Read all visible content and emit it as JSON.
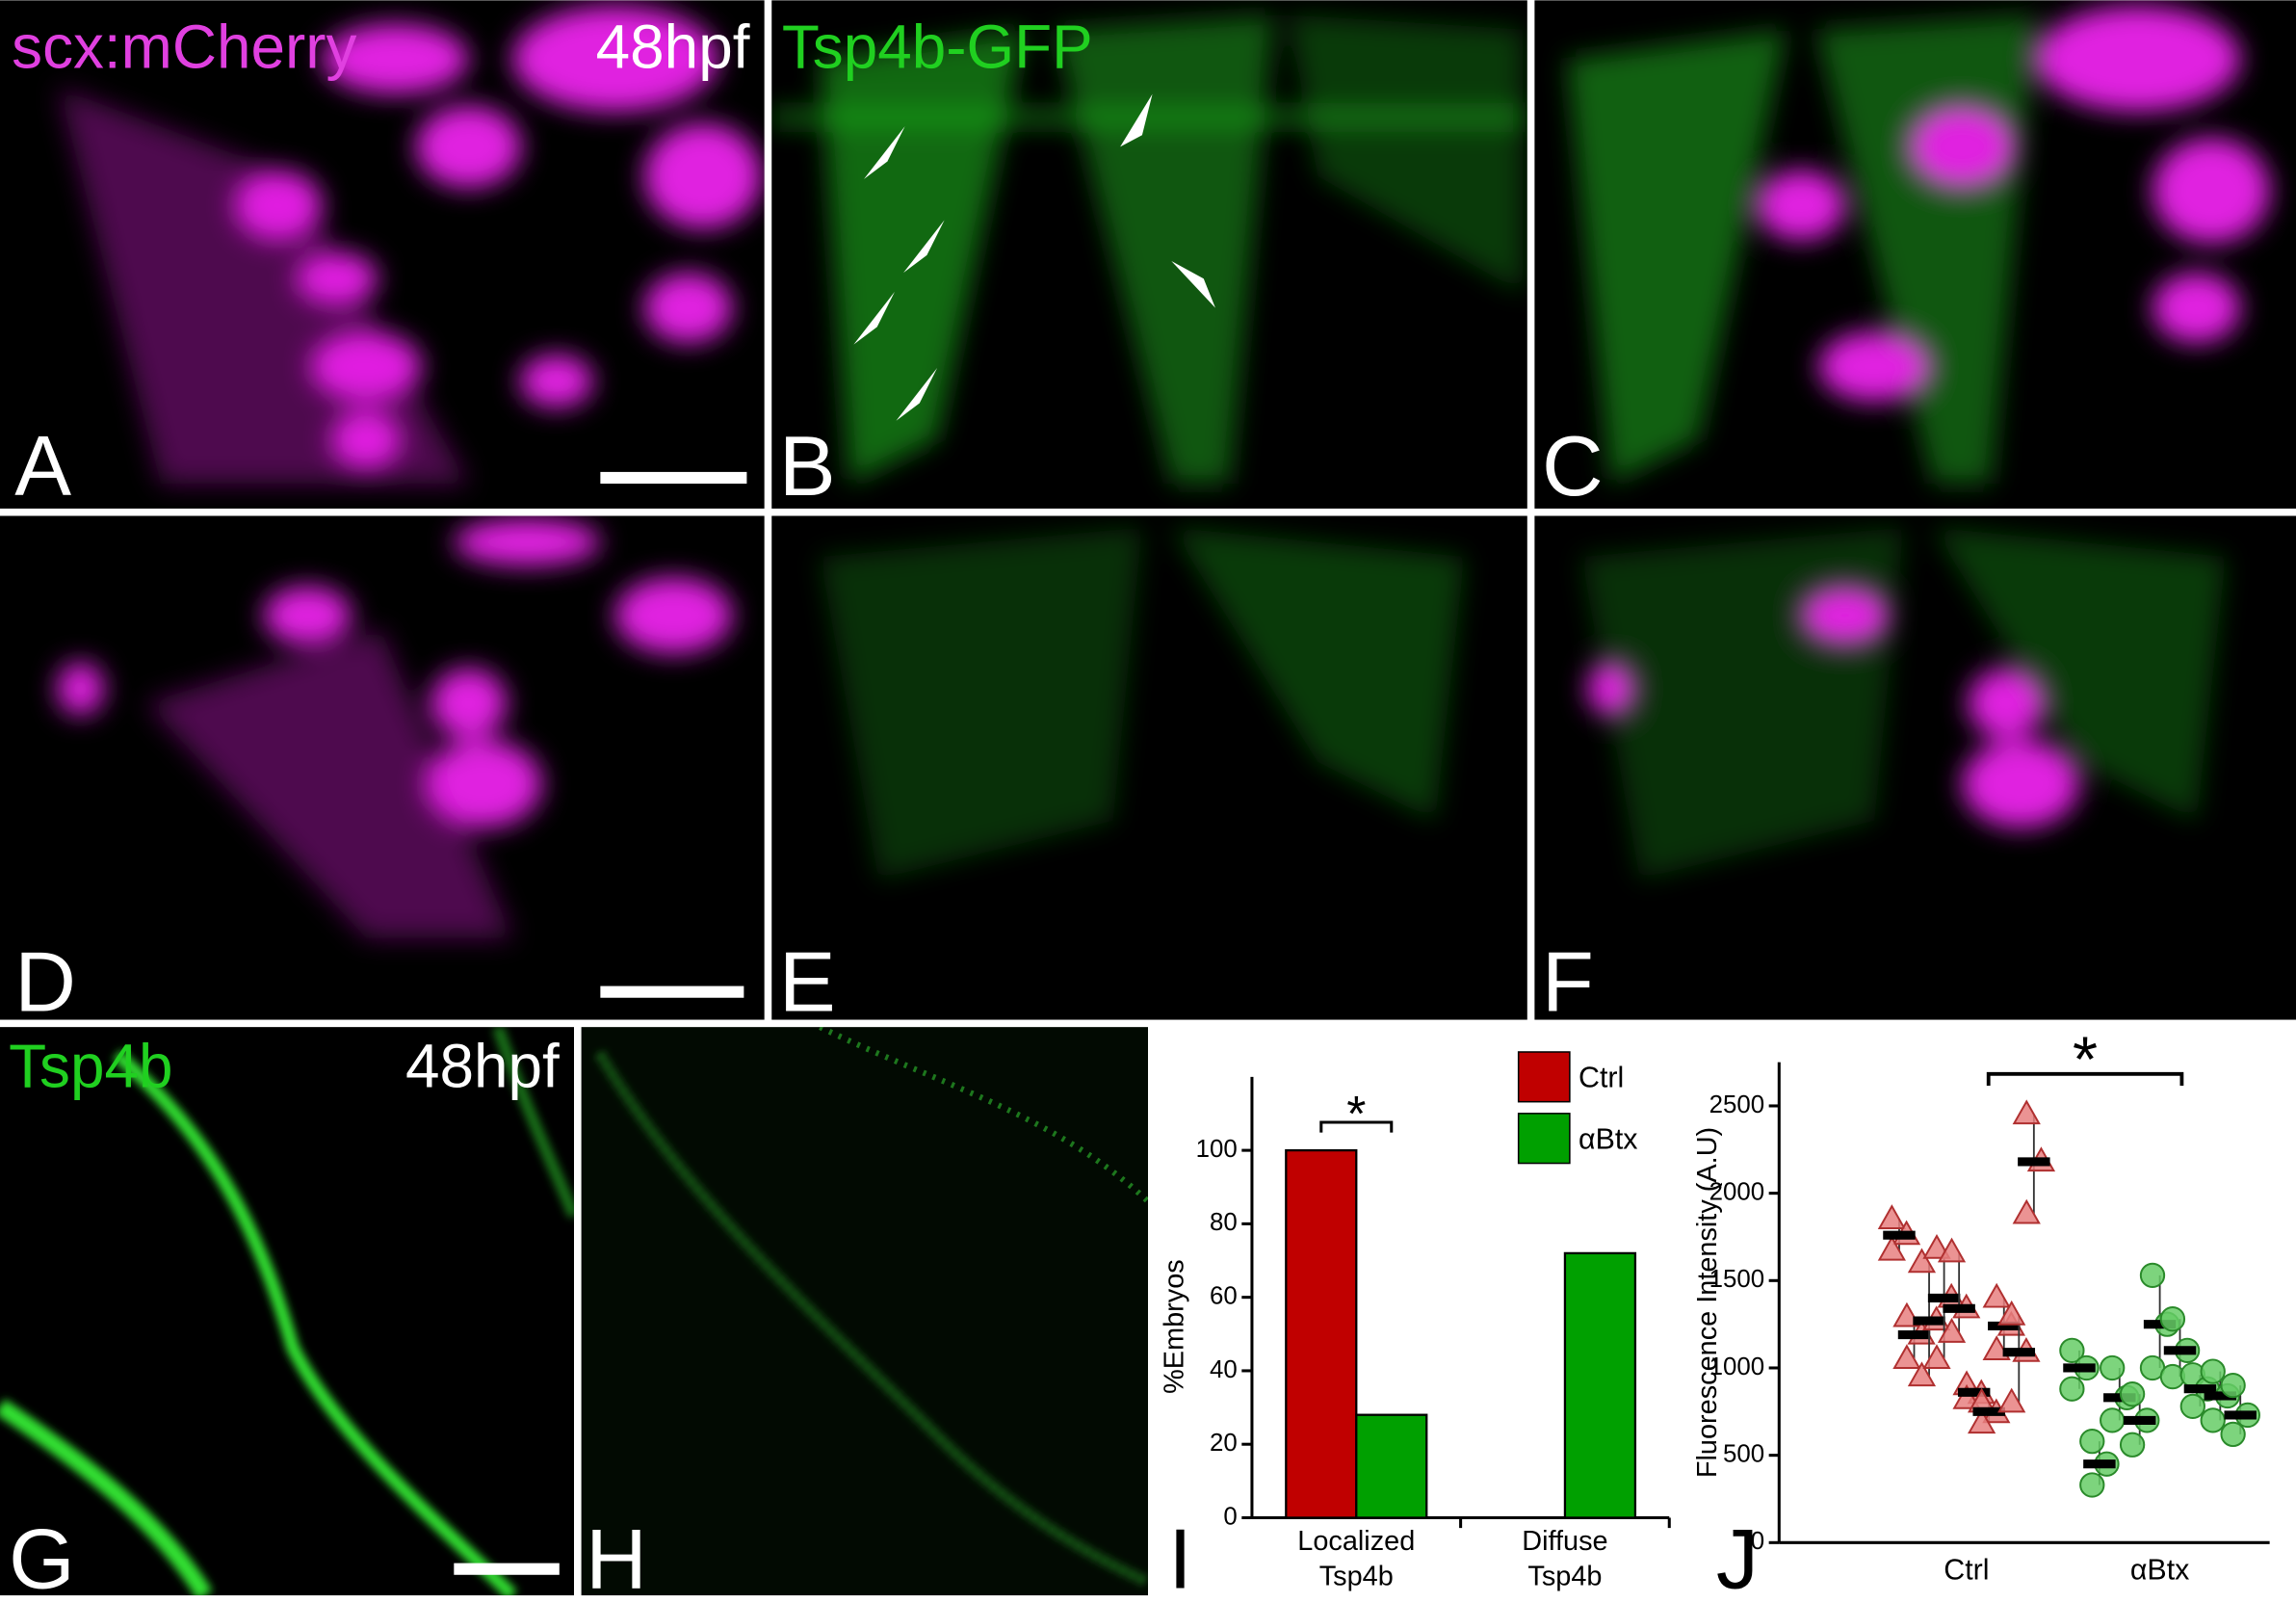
{
  "panel_labels": [
    "A",
    "B",
    "C",
    "D",
    "E",
    "F",
    "G",
    "H",
    "I",
    "J"
  ],
  "annotations": {
    "a_channel": "scx:mCherry",
    "a_stage": "48hpf",
    "b_channel": "Tsp4b-GFP",
    "g_channel": "Tsp4b",
    "g_stage": "48hpf"
  },
  "chart_data": [
    {
      "type": "bar",
      "ylabel": "%Embryos",
      "categories": [
        [
          "Localized",
          "Tsp4b"
        ],
        [
          "Diffuse",
          "Tsp4b"
        ]
      ],
      "series": [
        {
          "name": "Ctrl",
          "color": "#c00000",
          "values": [
            100,
            0
          ]
        },
        {
          "name": "αBtx",
          "color": "#00a000",
          "values": [
            28,
            72
          ]
        }
      ],
      "ylim": [
        0,
        120
      ],
      "yticks": [
        0,
        20,
        40,
        60,
        80,
        100
      ],
      "annotation": "*",
      "legend": "upper right"
    },
    {
      "type": "dot",
      "ylabel": "Fluorescence Intensity (A.U)",
      "categories": [
        "Ctrl",
        "αBtx"
      ],
      "colors": [
        "#e88080",
        "#66cc66"
      ],
      "markers": [
        "triangle",
        "circle"
      ],
      "groups": [
        [
          {
            "mean": 1760,
            "points": [
              1850,
              1760,
              1670
            ]
          },
          {
            "mean": 1190,
            "points": [
              1290,
              1190,
              1050
            ]
          },
          {
            "mean": 1270,
            "points": [
              1600,
              1270,
              950
            ]
          },
          {
            "mean": 1400,
            "points": [
              1680,
              1400,
              1050
            ]
          },
          {
            "mean": 1340,
            "points": [
              1660,
              1340,
              1200
            ]
          },
          {
            "mean": 860,
            "points": [
              900,
              850,
              820
            ]
          },
          {
            "mean": 750,
            "points": [
              800,
              740,
              680
            ]
          },
          {
            "mean": 1240,
            "points": [
              1400,
              1240,
              1100
            ]
          },
          {
            "mean": 1090,
            "points": [
              1300,
              1090,
              800
            ]
          },
          {
            "mean": 2180,
            "points": [
              2450,
              2180,
              1880
            ]
          }
        ],
        [
          {
            "mean": 1000,
            "points": [
              1100,
              1000,
              880
            ]
          },
          {
            "mean": 450,
            "points": [
              580,
              450,
              330
            ]
          },
          {
            "mean": 830,
            "points": [
              1000,
              830,
              700
            ]
          },
          {
            "mean": 700,
            "points": [
              850,
              700,
              560
            ]
          },
          {
            "mean": 1250,
            "points": [
              1530,
              1250,
              1000
            ]
          },
          {
            "mean": 1100,
            "points": [
              1280,
              1100,
              950
            ]
          },
          {
            "mean": 880,
            "points": [
              960,
              880,
              780
            ]
          },
          {
            "mean": 840,
            "points": [
              980,
              840,
              700
            ]
          },
          {
            "mean": 730,
            "points": [
              900,
              730,
              620
            ]
          }
        ]
      ],
      "ylim": [
        0,
        2750
      ],
      "yticks": [
        0,
        500,
        1000,
        1500,
        2000,
        2500
      ],
      "annotation": "*"
    }
  ]
}
